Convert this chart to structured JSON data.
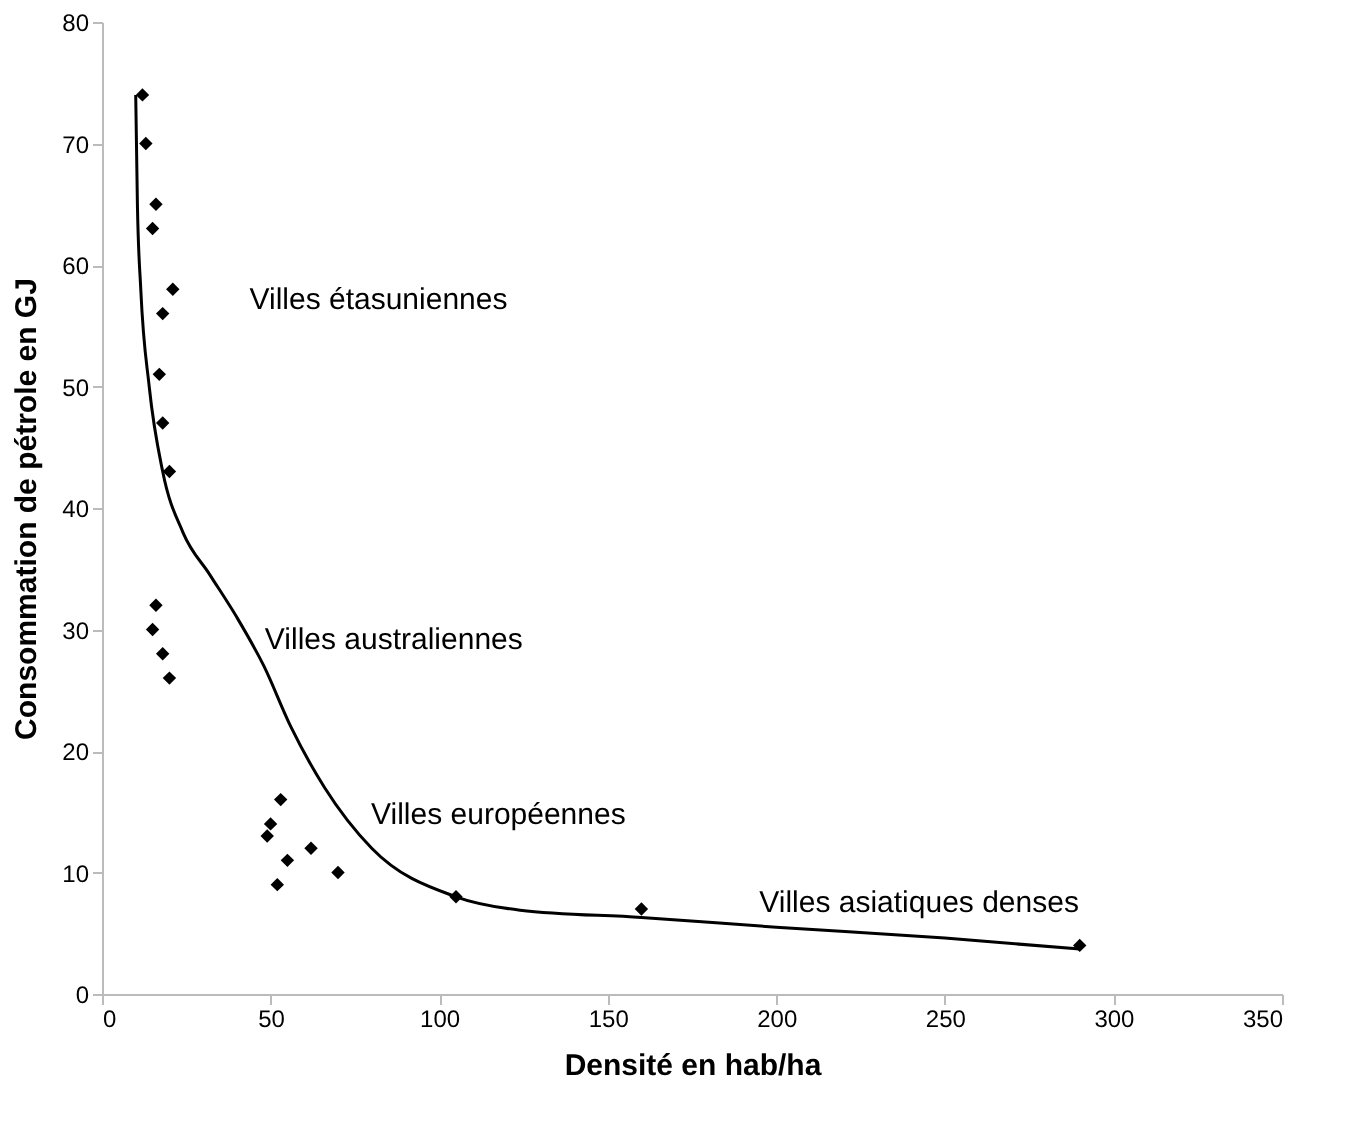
{
  "chart_data": {
    "type": "scatter",
    "xlabel": "Densité en hab/ha",
    "ylabel": "Consommation de pétrole en GJ",
    "xlim": [
      0,
      350
    ],
    "xticks": [
      0,
      50,
      100,
      150,
      200,
      250,
      300,
      350
    ],
    "ylim": [
      0,
      80
    ],
    "yticks": [
      0,
      10,
      20,
      30,
      40,
      50,
      60,
      70,
      80
    ],
    "grid": false,
    "marker": "diamond",
    "series": [
      {
        "color": "#000000",
        "x": [
          12,
          13,
          16,
          15,
          21,
          18,
          17,
          18,
          20,
          16,
          15,
          18,
          20,
          53,
          50,
          49,
          55,
          62,
          52,
          70,
          105,
          160,
          290
        ],
        "values": [
          74,
          70,
          65,
          63,
          58,
          56,
          51,
          47,
          43,
          32,
          30,
          28,
          26,
          16,
          14,
          13,
          11,
          12,
          9,
          10,
          8,
          7,
          4
        ]
      },
      {
        "type": "line",
        "marker": "none",
        "line_style": "solid",
        "color": "#000000",
        "x": [
          10,
          10.5,
          11.5,
          14,
          18,
          24,
          32,
          40,
          48,
          56,
          66,
          80,
          105,
          124,
          160,
          200,
          250,
          290
        ],
        "values": [
          74,
          65,
          58,
          50,
          43,
          38,
          34.5,
          31,
          27,
          22,
          17,
          12,
          8,
          6.9,
          6.3,
          5.5,
          4.6,
          3.7
        ]
      }
    ],
    "annotations": [
      "Villes étasuniennes",
      "Villes australiennes",
      "Villes européennes",
      "Villes asiatiques denses"
    ]
  }
}
